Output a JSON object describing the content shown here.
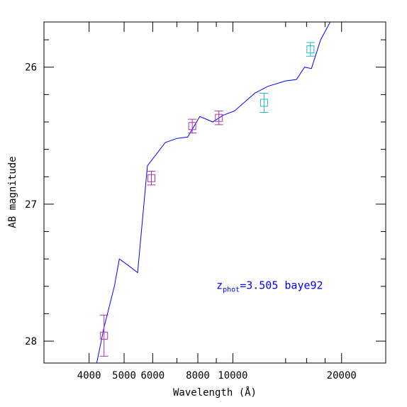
{
  "chart_data": {
    "type": "scatter",
    "title": "",
    "xlabel": "Wavelength (Å)",
    "ylabel": "AB magnitude",
    "x_scale": "log",
    "y_inverted": true,
    "xlim": [
      3000,
      26500
    ],
    "ylim": [
      28.16,
      25.67
    ],
    "x_ticks_labeled": [
      {
        "value": 4000,
        "label": "4000"
      },
      {
        "value": 5000,
        "label": "5000"
      },
      {
        "value": 6000,
        "label": "6000"
      },
      {
        "value": 8000,
        "label": "8000"
      },
      {
        "value": 10000,
        "label": "10000"
      },
      {
        "value": 20000,
        "label": "20000"
      }
    ],
    "x_ticks_minor": [
      3000,
      7000,
      9000,
      14000,
      16000,
      18000
    ],
    "y_ticks_labeled": [
      {
        "value": 26,
        "label": "26"
      },
      {
        "value": 27,
        "label": "27"
      },
      {
        "value": 28,
        "label": "28"
      }
    ],
    "y_ticks_minor": [
      25.8,
      26.2,
      26.4,
      26.6,
      26.8,
      27.2,
      27.4,
      27.6,
      27.8
    ],
    "annotation": {
      "main": "z",
      "sub": "phot",
      "rest": "=3.505 baye92",
      "x": 9000,
      "y": 27.62,
      "color": "#0000ff"
    },
    "series": [
      {
        "kind": "line",
        "color": "#0000ff",
        "points": [
          [
            4200,
            28.16
          ],
          [
            4400,
            27.9
          ],
          [
            4700,
            27.6
          ],
          [
            4850,
            27.4
          ],
          [
            5150,
            27.45
          ],
          [
            5450,
            27.5
          ],
          [
            5800,
            26.72
          ],
          [
            6500,
            26.55
          ],
          [
            7000,
            26.52
          ],
          [
            7500,
            26.51
          ],
          [
            8100,
            26.36
          ],
          [
            8800,
            26.4
          ],
          [
            9400,
            26.35
          ],
          [
            10100,
            26.32
          ],
          [
            11500,
            26.19
          ],
          [
            12500,
            26.14
          ],
          [
            14000,
            26.1
          ],
          [
            15000,
            26.09
          ],
          [
            15800,
            26.0
          ],
          [
            16500,
            26.01
          ],
          [
            17500,
            25.8
          ],
          [
            18600,
            25.67
          ]
        ]
      },
      {
        "kind": "points",
        "color": "#b030b0",
        "points": [
          {
            "x": 4400,
            "y": 27.96,
            "err": 0.15
          },
          {
            "x": 5950,
            "y": 26.81,
            "err": 0.05
          },
          {
            "x": 7720,
            "y": 26.43,
            "err": 0.05
          },
          {
            "x": 9150,
            "y": 26.37,
            "err": 0.05
          }
        ]
      },
      {
        "kind": "points",
        "color": "#20b8c8",
        "points": [
          {
            "x": 12200,
            "y": 26.26,
            "err": 0.07
          },
          {
            "x": 16400,
            "y": 25.87,
            "err": 0.05
          }
        ]
      }
    ]
  }
}
